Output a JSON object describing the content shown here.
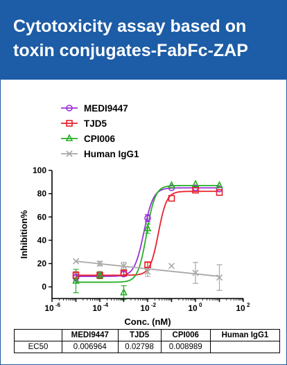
{
  "header": {
    "title_line1": "Cytotoxicity assay based on",
    "title_line2": "toxin conjugates-FabFc-ZAP"
  },
  "chart_data": {
    "type": "scatter",
    "xlabel": "Conc. (nM)",
    "ylabel": "Inhibition%",
    "xscale": "log10",
    "xlim": [
      1e-06,
      100
    ],
    "ylim": [
      -10,
      100
    ],
    "x_tick_labels": [
      {
        "base": "10",
        "exp": "-6"
      },
      {
        "base": "10",
        "exp": "-4"
      },
      {
        "base": "10",
        "exp": "-2"
      },
      {
        "base": "10",
        "exp": "0"
      },
      {
        "base": "10",
        "exp": "2"
      }
    ],
    "x_tick_values": [
      1e-06,
      0.0001,
      0.01,
      1,
      100
    ],
    "y_tick_labels": [
      "0",
      "20",
      "40",
      "60",
      "80",
      "100"
    ],
    "y_tick_values": [
      0,
      20,
      40,
      60,
      80,
      100
    ],
    "legend_position": "top-left",
    "series": [
      {
        "name": "MEDI9447",
        "color": "#9b30d9",
        "marker": "circle",
        "x": [
          1e-05,
          0.0001,
          0.001,
          0.01,
          0.1,
          1,
          10
        ],
        "y": [
          8,
          10,
          11,
          59,
          85,
          85,
          84
        ],
        "err": [
          3,
          3,
          2,
          3,
          1,
          1,
          1
        ],
        "fit": {
          "bottom": 9,
          "top": 85,
          "logEC50": -2.157,
          "hill": 2.2
        }
      },
      {
        "name": "TJD5",
        "color": "#e8202a",
        "marker": "square",
        "x": [
          1e-05,
          0.0001,
          0.001,
          0.01,
          0.1,
          1,
          10
        ],
        "y": [
          10,
          10,
          12,
          19,
          76,
          83,
          81
        ],
        "err": [
          3,
          2,
          2,
          2,
          1,
          1,
          1
        ],
        "fit": {
          "bottom": 10,
          "top": 82,
          "logEC50": -1.553,
          "hill": 2.5
        }
      },
      {
        "name": "CPI006",
        "color": "#22b022",
        "marker": "triangle",
        "x": [
          1e-05,
          0.0001,
          0.001,
          0.01,
          0.1,
          1,
          10
        ],
        "y": [
          5,
          10,
          -5,
          50,
          87,
          88,
          87
        ],
        "err": [
          10,
          3,
          6,
          4,
          1,
          1,
          1
        ],
        "fit": {
          "bottom": 4,
          "top": 87,
          "logEC50": -2.046,
          "hill": 2.4
        }
      },
      {
        "name": "Human IgG1",
        "color": "#a8a8a8",
        "marker": "x",
        "x": [
          1e-05,
          0.0001,
          0.001,
          0.01,
          0.1,
          1,
          10
        ],
        "y": [
          22,
          20,
          18,
          13,
          18,
          12,
          8
        ],
        "err": [
          1,
          2,
          3,
          4,
          1,
          9,
          11
        ],
        "trend": {
          "x0": 1e-05,
          "y0": 22,
          "x1": 10,
          "y1": 9
        }
      }
    ]
  },
  "table": {
    "columns": [
      "",
      "MEDI9447",
      "TJD5",
      "CPI006",
      "Human IgG1"
    ],
    "rows": [
      [
        "EC50",
        "0.006964",
        "0.02798",
        "0.008989",
        ""
      ]
    ]
  }
}
